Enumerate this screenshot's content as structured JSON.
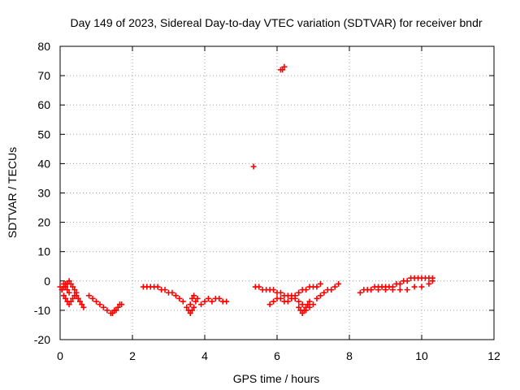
{
  "chart_data": {
    "type": "scatter",
    "title": "Day 149 of 2023, Sidereal Day-to-day VTEC variation (SDTVAR) for receiver bndr",
    "xlabel": "GPS time / hours",
    "ylabel": "SDTVAR / TECUs",
    "xlim": [
      0,
      12
    ],
    "ylim": [
      -20,
      80
    ],
    "xticks": [
      0,
      2,
      4,
      6,
      8,
      10,
      12
    ],
    "yticks": [
      -20,
      -10,
      0,
      10,
      20,
      30,
      40,
      50,
      60,
      70,
      80
    ],
    "grid": true,
    "marker": "plus",
    "color": "#ff0000",
    "series": [
      {
        "name": "bndr",
        "color": "#ff0000",
        "x": [
          0.0,
          0.05,
          0.1,
          0.15,
          0.2,
          0.25,
          0.3,
          0.35,
          0.4,
          0.45,
          0.5,
          0.55,
          0.6,
          0.65,
          0.05,
          0.1,
          0.15,
          0.2,
          0.25,
          0.3,
          0.35,
          0.4,
          0.45,
          0.1,
          0.15,
          0.2,
          0.25,
          0.8,
          0.9,
          1.0,
          1.1,
          1.2,
          1.3,
          1.4,
          1.45,
          1.5,
          1.55,
          1.6,
          1.65,
          1.7,
          2.3,
          2.4,
          2.5,
          2.6,
          2.7,
          2.8,
          2.9,
          3.0,
          3.1,
          3.2,
          3.3,
          3.4,
          3.5,
          3.55,
          3.6,
          3.65,
          3.7,
          3.6,
          3.65,
          3.7,
          3.75,
          3.8,
          3.9,
          4.0,
          4.1,
          4.2,
          4.3,
          4.4,
          4.5,
          4.6,
          5.35,
          5.4,
          5.5,
          5.6,
          5.7,
          5.8,
          5.9,
          6.0,
          6.1,
          6.2,
          6.3,
          6.4,
          6.5,
          6.6,
          6.7,
          5.8,
          5.9,
          6.0,
          6.1,
          6.2,
          6.3,
          6.4,
          6.5,
          6.6,
          6.1,
          6.15,
          6.2,
          6.6,
          6.65,
          6.7,
          6.75,
          6.8,
          6.85,
          6.9,
          6.8,
          6.9,
          7.0,
          7.1,
          7.2,
          7.3,
          7.4,
          7.5,
          7.6,
          7.7,
          6.5,
          6.6,
          6.7,
          6.8,
          6.9,
          7.0,
          7.1,
          7.2,
          8.3,
          8.4,
          8.5,
          8.6,
          8.7,
          8.8,
          8.9,
          9.0,
          9.1,
          9.2,
          9.3,
          9.4,
          9.5,
          9.6,
          9.7,
          9.8,
          9.9,
          10.0,
          10.1,
          10.2,
          10.3,
          8.6,
          8.8,
          9.0,
          9.2,
          9.4,
          9.6,
          9.8,
          10.0,
          10.2,
          10.3
        ],
        "y": [
          -2,
          -3,
          -2,
          -1,
          -1,
          0,
          -1,
          -2,
          -3,
          -5,
          -6,
          -7,
          -8,
          -9,
          -3,
          -5,
          -6,
          -7,
          -8,
          -7,
          -6,
          -5,
          -4,
          -1,
          -2,
          -3,
          -4,
          -5,
          -6,
          -7,
          -8,
          -9,
          -10,
          -11,
          -11,
          -10,
          -10,
          -9,
          -8,
          -8,
          -2,
          -2,
          -2,
          -2,
          -2,
          -3,
          -3,
          -4,
          -4,
          -5,
          -6,
          -7,
          -9,
          -10,
          -11,
          -10,
          -9,
          -8,
          -6,
          -5,
          -7,
          -6,
          -8,
          -7,
          -6,
          -7,
          -6,
          -6,
          -7,
          -7,
          39,
          -2,
          -2,
          -3,
          -3,
          -3,
          -3,
          -4,
          -4,
          -5,
          -5,
          -5,
          -6,
          -7,
          -8,
          -8,
          -7,
          -6,
          -6,
          -7,
          -7,
          -6,
          -5,
          -4,
          72,
          72,
          73,
          -9,
          -10,
          -11,
          -10,
          -9,
          -8,
          -7,
          -10,
          -9,
          -8,
          -6,
          -5,
          -4,
          -3,
          -3,
          -2,
          -1,
          -5,
          -4,
          -3,
          -3,
          -2,
          -2,
          -2,
          -1,
          -4,
          -3,
          -3,
          -3,
          -2,
          -2,
          -2,
          -2,
          -2,
          -2,
          -1,
          -1,
          0,
          0,
          1,
          1,
          1,
          1,
          1,
          1,
          1,
          -3,
          -3,
          -3,
          -3,
          -3,
          -3,
          -2,
          -2,
          -1,
          0
        ]
      }
    ]
  }
}
